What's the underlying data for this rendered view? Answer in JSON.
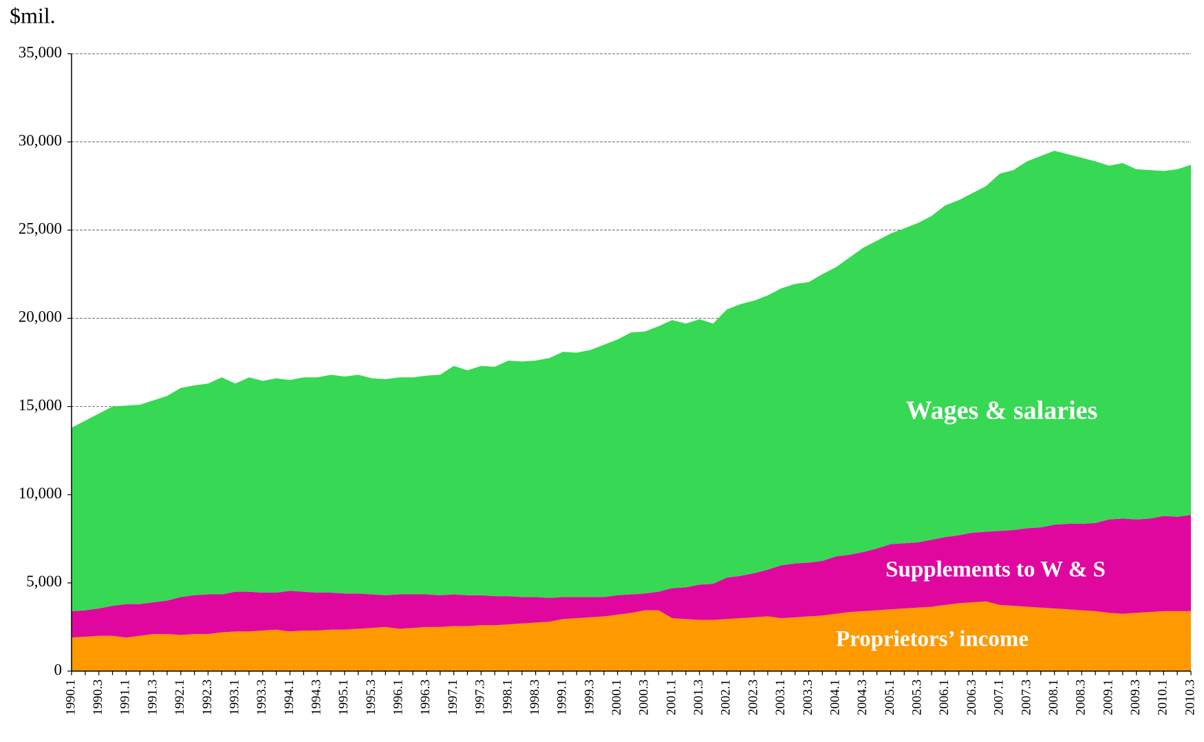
{
  "chart_data": {
    "type": "stacked_area",
    "y_label": "$mil.",
    "categories": [
      "1990.1",
      null,
      "1990.3",
      null,
      "1991.1",
      null,
      "1991.3",
      null,
      "1992.1",
      null,
      "1992.3",
      null,
      "1993.1",
      null,
      "1993.3",
      null,
      "1994.1",
      null,
      "1994.3",
      null,
      "1995.1",
      null,
      "1995.3",
      null,
      "1996.1",
      null,
      "1996.3",
      null,
      "1997.1",
      null,
      "1997.3",
      null,
      "1998.1",
      null,
      "1998.3",
      null,
      "1999.1",
      null,
      "1999.3",
      null,
      "2000.1",
      null,
      "2000.3",
      null,
      "2001.1",
      null,
      "2001.3",
      null,
      "2002.1",
      null,
      "2002.3",
      null,
      "2003.1",
      null,
      "2003.3",
      null,
      "2004.1",
      null,
      "2004.3",
      null,
      "2005.1",
      null,
      "2005.3",
      null,
      "2006.1",
      null,
      "2006.3",
      null,
      "2007.1",
      null,
      "2007.3",
      null,
      "2008.1",
      null,
      "2008.3",
      null,
      "2009.1",
      null,
      "2009.3",
      null,
      "2010.1",
      null,
      "2010.3"
    ],
    "series": [
      {
        "name": "Proprietors’ income",
        "color": "#ff9900",
        "values": [
          1900,
          1950,
          2000,
          2000,
          1900,
          2000,
          2100,
          2100,
          2050,
          2100,
          2100,
          2200,
          2250,
          2250,
          2300,
          2350,
          2250,
          2300,
          2300,
          2350,
          2350,
          2400,
          2450,
          2500,
          2400,
          2450,
          2500,
          2500,
          2550,
          2550,
          2600,
          2600,
          2650,
          2700,
          2750,
          2800,
          2950,
          3000,
          3050,
          3100,
          3200,
          3300,
          3450,
          3450,
          3000,
          2950,
          2900,
          2900,
          2950,
          3000,
          3050,
          3100,
          3000,
          3050,
          3100,
          3150,
          3250,
          3350,
          3400,
          3450,
          3500,
          3550,
          3600,
          3650,
          3750,
          3850,
          3900,
          3950,
          3750,
          3700,
          3650,
          3600,
          3550,
          3500,
          3450,
          3400,
          3300,
          3250,
          3300,
          3350,
          3400,
          3400,
          3400
        ]
      },
      {
        "name": "Supplements to W & S",
        "color": "#e0079f",
        "values": [
          1500,
          1500,
          1550,
          1700,
          1900,
          1800,
          1800,
          1900,
          2150,
          2200,
          2250,
          2150,
          2250,
          2250,
          2150,
          2100,
          2300,
          2200,
          2150,
          2100,
          2050,
          2000,
          1900,
          1800,
          1950,
          1900,
          1850,
          1800,
          1800,
          1750,
          1700,
          1650,
          1600,
          1500,
          1450,
          1350,
          1250,
          1200,
          1150,
          1100,
          1100,
          1050,
          950,
          1050,
          1700,
          1800,
          2000,
          2050,
          2350,
          2400,
          2500,
          2650,
          3000,
          3050,
          3050,
          3100,
          3250,
          3250,
          3350,
          3500,
          3700,
          3700,
          3700,
          3800,
          3850,
          3850,
          3950,
          3950,
          4200,
          4300,
          4450,
          4550,
          4750,
          4850,
          4900,
          5000,
          5300,
          5400,
          5300,
          5300,
          5400,
          5350,
          5450
        ]
      },
      {
        "name": "Wages & salaries",
        "color": "#37d853",
        "values": [
          10400,
          10750,
          11050,
          11300,
          11250,
          11300,
          11450,
          11600,
          11850,
          11900,
          11950,
          12300,
          11800,
          12150,
          12000,
          12150,
          11950,
          12150,
          12200,
          12350,
          12300,
          12400,
          12250,
          12250,
          12300,
          12300,
          12400,
          12500,
          12950,
          12750,
          13000,
          13000,
          13350,
          13350,
          13400,
          13600,
          13900,
          13850,
          14000,
          14300,
          14500,
          14850,
          14850,
          15050,
          15200,
          14950,
          15050,
          14750,
          15200,
          15400,
          15450,
          15550,
          15700,
          15850,
          15900,
          16250,
          16400,
          16850,
          17250,
          17450,
          17600,
          17850,
          18100,
          18350,
          18800,
          19000,
          19250,
          19600,
          20250,
          20400,
          20800,
          21050,
          21200,
          20950,
          20750,
          20500,
          20050,
          20150,
          19850,
          19750,
          19550,
          19700,
          19850
        ]
      }
    ],
    "ylim": [
      0,
      35000
    ],
    "yticks": [
      0,
      {
        "value": 5000,
        "label": "5,000"
      },
      {
        "value": 10000,
        "label": "10,000"
      },
      {
        "value": 15000,
        "label": "15,000"
      },
      {
        "value": 20000,
        "label": "20,000"
      },
      {
        "value": 25000,
        "label": "25,000"
      },
      {
        "value": 30000,
        "label": "30,000"
      },
      {
        "value": 35000,
        "label": "35,000"
      }
    ],
    "grid": true
  }
}
